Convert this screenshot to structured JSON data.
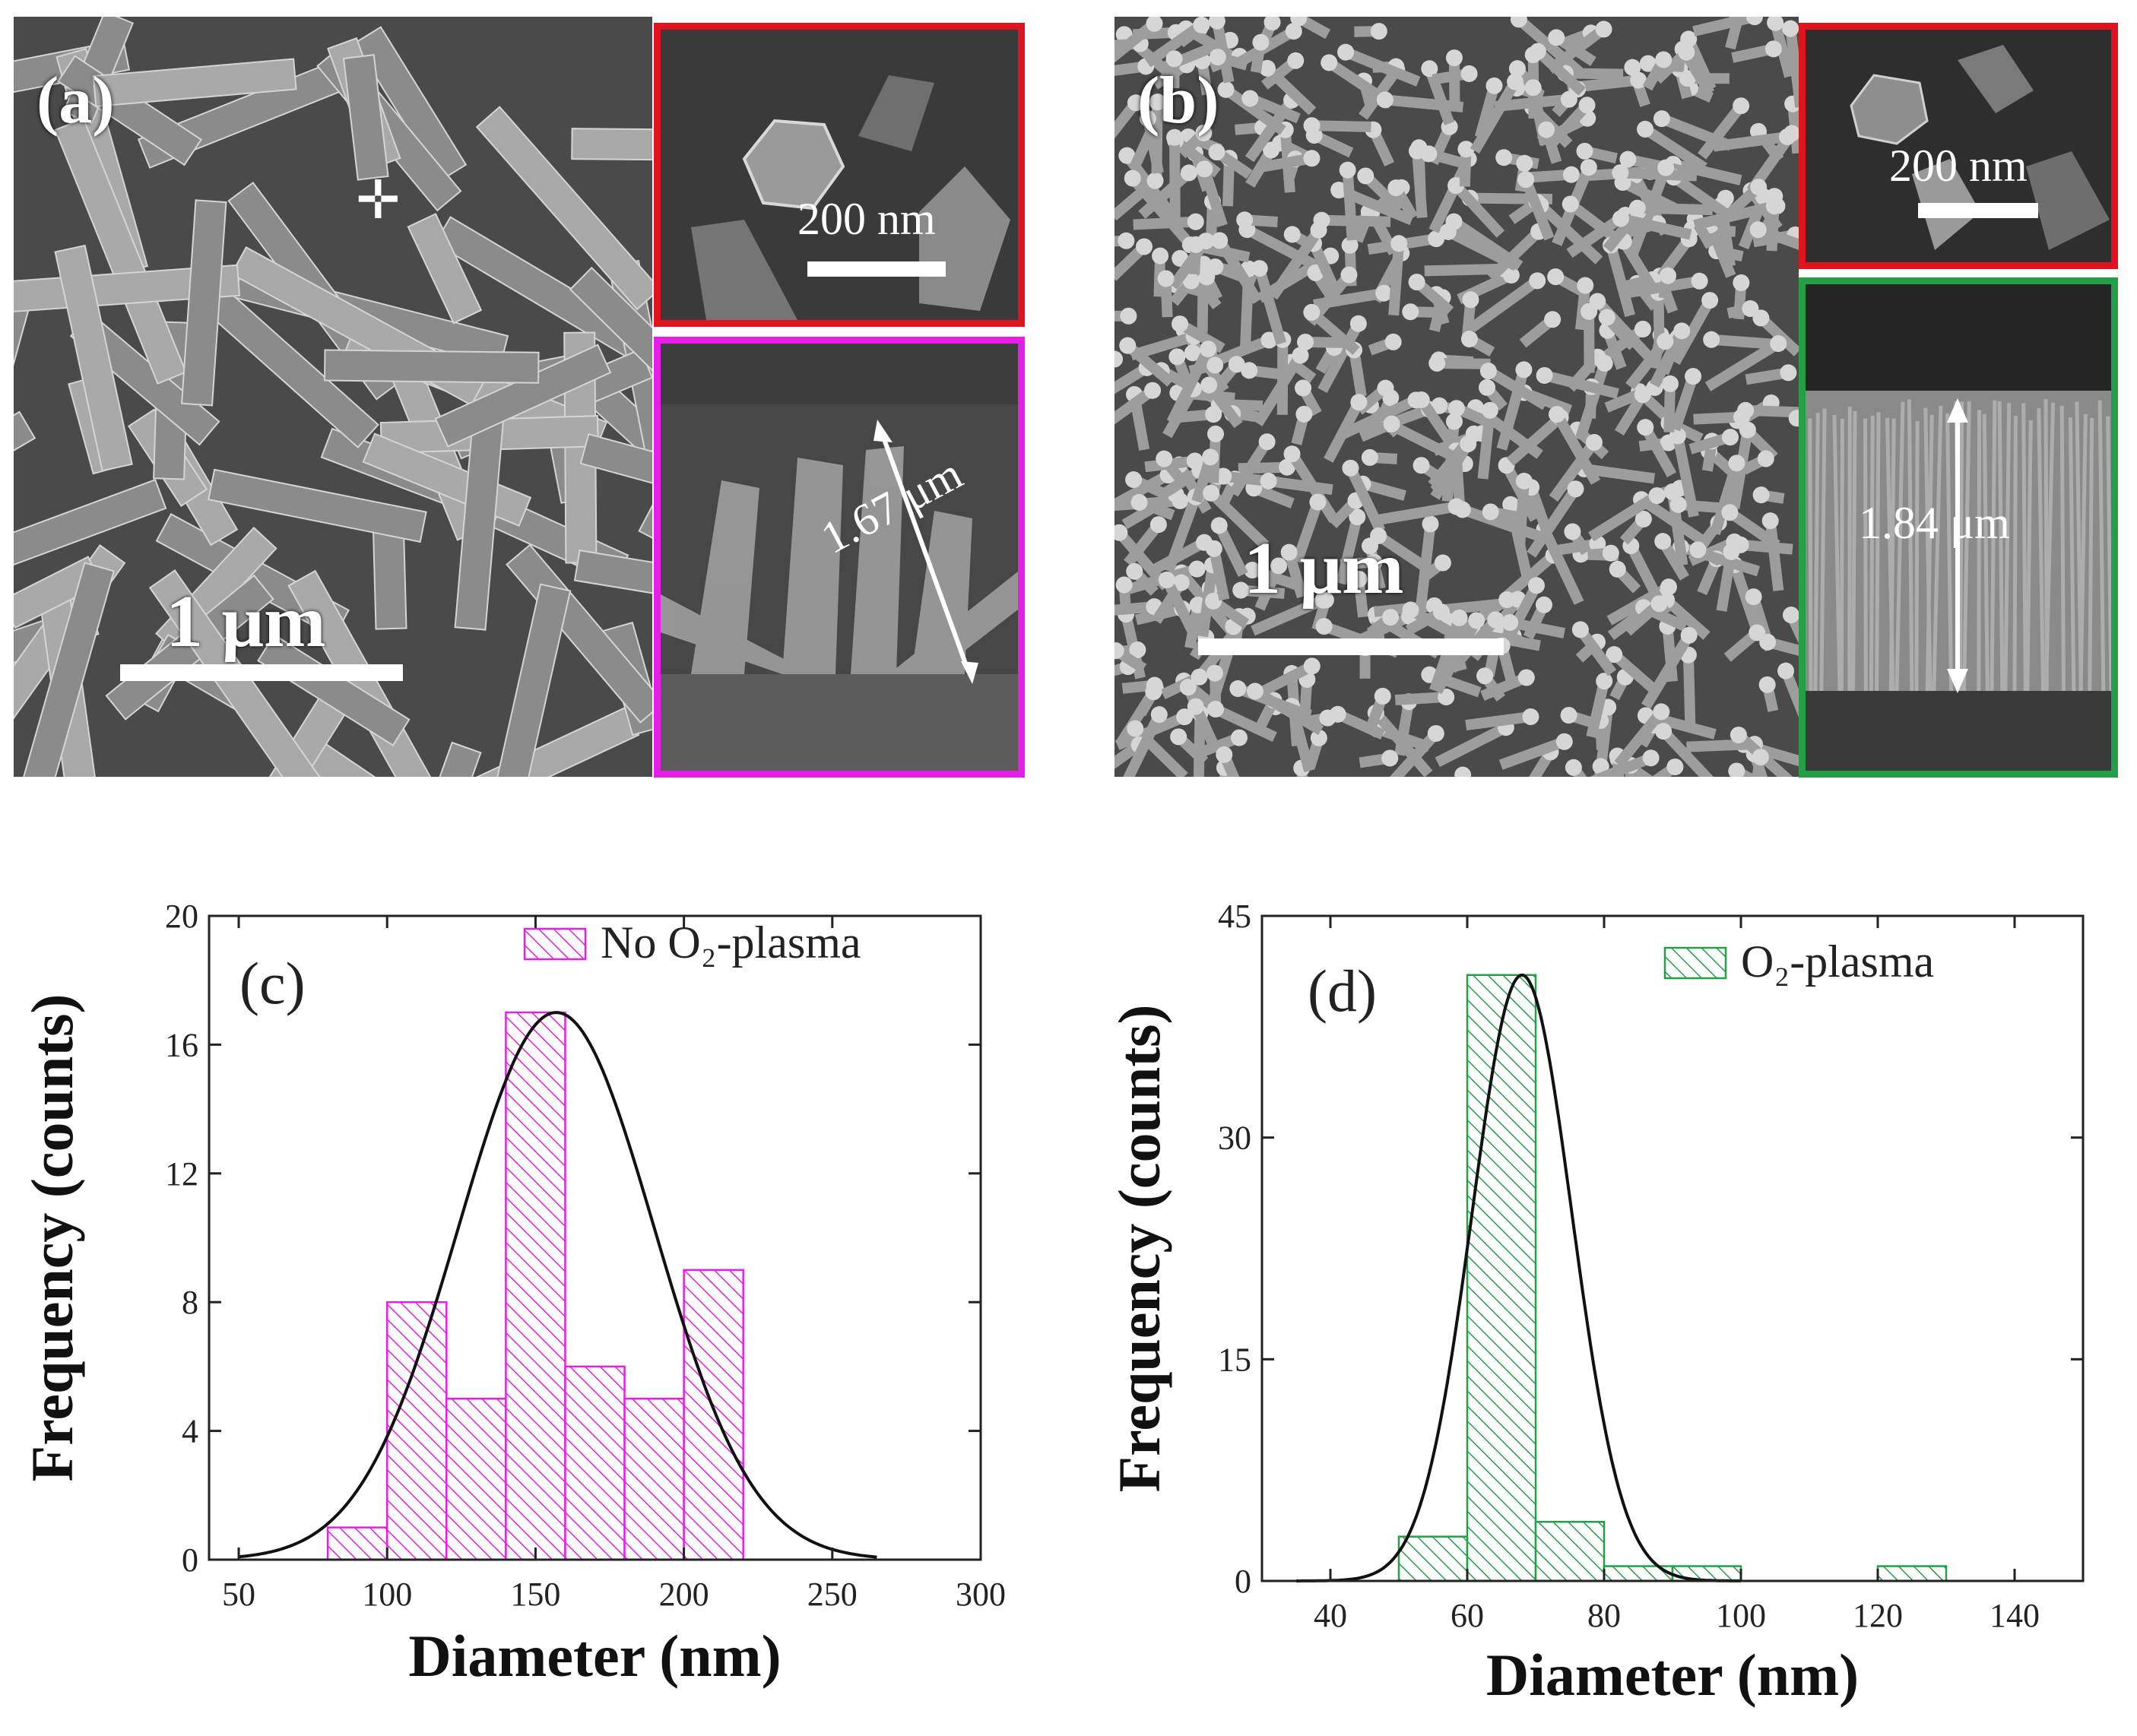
{
  "panels": {
    "a": {
      "label": "(a)",
      "scale_bar": "1 μm",
      "inset_top_scale": "200 nm",
      "inset_bottom_length": "1.67 μm"
    },
    "b": {
      "label": "(b)",
      "scale_bar": "1 μm",
      "inset_top_scale": "200 nm",
      "inset_bottom_length": "1.84 μm"
    }
  },
  "colors": {
    "magenta": "#e61ee6",
    "green": "#23a047",
    "red": "#e0141e",
    "curve": "#111111"
  },
  "chart_data": [
    {
      "type": "bar",
      "panel_label": "(c)",
      "legend": "No O₂-plasma",
      "xlabel": "Diameter (nm)",
      "ylabel": "Frequency (counts)",
      "xlim": [
        40,
        300
      ],
      "ylim": [
        0,
        20
      ],
      "xticks": [
        50,
        100,
        150,
        200,
        250,
        300
      ],
      "yticks": [
        0,
        4,
        8,
        12,
        16,
        20
      ],
      "bins": [
        [
          80,
          100
        ],
        [
          100,
          120
        ],
        [
          120,
          140
        ],
        [
          140,
          160
        ],
        [
          160,
          180
        ],
        [
          180,
          200
        ],
        [
          200,
          220
        ]
      ],
      "values": [
        1,
        8,
        5,
        17,
        6,
        5,
        9
      ],
      "fit": {
        "type": "gaussian",
        "center": 157,
        "sigma": 33,
        "amplitude": 17,
        "xrange": [
          50,
          265
        ]
      }
    },
    {
      "type": "bar",
      "panel_label": "(d)",
      "legend": "O₂-plasma",
      "xlabel": "Diameter (nm)",
      "ylabel": "Frequency (counts)",
      "xlim": [
        30,
        150
      ],
      "ylim": [
        0,
        45
      ],
      "xticks": [
        40,
        60,
        80,
        100,
        120,
        140
      ],
      "yticks": [
        0,
        15,
        30,
        45
      ],
      "bins": [
        [
          50,
          60
        ],
        [
          60,
          70
        ],
        [
          70,
          80
        ],
        [
          80,
          90
        ],
        [
          90,
          100
        ],
        [
          120,
          130
        ]
      ],
      "values": [
        3,
        41,
        4,
        1,
        1,
        1
      ],
      "fit": {
        "type": "gaussian",
        "center": 68,
        "sigma": 7.3,
        "amplitude": 41,
        "xrange": [
          35,
          100
        ]
      }
    }
  ]
}
